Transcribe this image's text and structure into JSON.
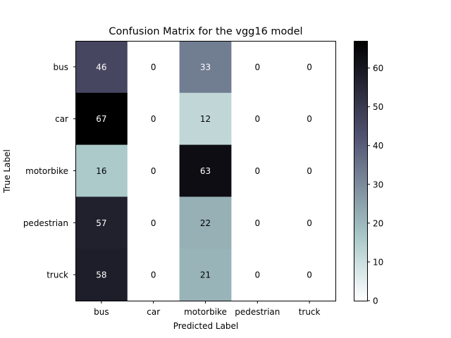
{
  "chart_data": {
    "type": "heatmap",
    "title": "Confusion Matrix for the vgg16 model",
    "xlabel": "Predicted Label",
    "ylabel": "True Label",
    "x_categories": [
      "bus",
      "car",
      "motorbike",
      "pedestrian",
      "truck"
    ],
    "y_categories": [
      "bus",
      "car",
      "motorbike",
      "pedestrian",
      "truck"
    ],
    "values": [
      [
        46,
        0,
        33,
        0,
        0
      ],
      [
        67,
        0,
        12,
        0,
        0
      ],
      [
        16,
        0,
        63,
        0,
        0
      ],
      [
        57,
        0,
        22,
        0,
        0
      ],
      [
        58,
        0,
        21,
        0,
        0
      ]
    ],
    "colormap": "bone_r",
    "colorbar": {
      "min": 0,
      "max": 67,
      "ticks": [
        0,
        10,
        20,
        30,
        40,
        50,
        60
      ]
    },
    "text_colors": {
      "light": "#ffffff",
      "dark": "#000000"
    },
    "frame_color": "#000000"
  }
}
